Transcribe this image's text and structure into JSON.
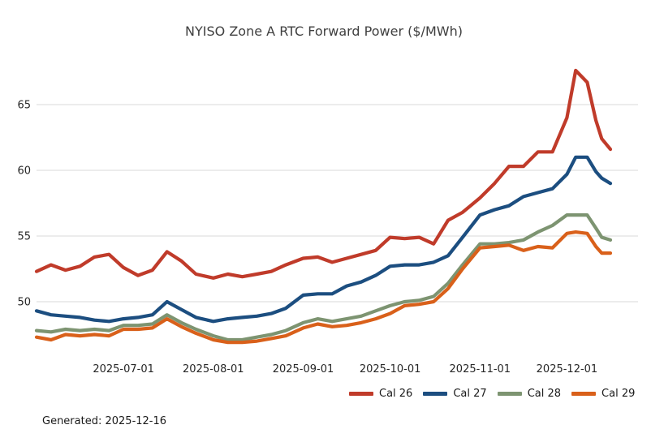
{
  "chart_data": {
    "type": "line",
    "title": "NYISO Zone A RTC Forward Power ($/MWh)",
    "xlabel": "",
    "ylabel": "",
    "grid": "horizontal-only",
    "legend_position": "bottom-right-below-axis",
    "x_range": [
      "2025-06-01",
      "2025-12-16"
    ],
    "x_tick_dates": [
      "2025-07-01",
      "2025-08-01",
      "2025-09-01",
      "2025-10-01",
      "2025-11-01",
      "2025-12-01"
    ],
    "x_tick_labels": [
      "2025-07-01",
      "2025-08-01",
      "2025-09-01",
      "2025-10-01",
      "2025-11-01",
      "2025-12-01"
    ],
    "y_ticks": [
      50,
      55,
      60,
      65
    ],
    "y_tick_labels": [
      "50",
      "55",
      "60",
      "65"
    ],
    "y_visible_range": [
      46.4,
      68.1
    ],
    "dates": [
      "2025-06-01",
      "2025-06-06",
      "2025-06-11",
      "2025-06-16",
      "2025-06-21",
      "2025-06-26",
      "2025-07-01",
      "2025-07-06",
      "2025-07-11",
      "2025-07-16",
      "2025-07-21",
      "2025-07-26",
      "2025-08-01",
      "2025-08-06",
      "2025-08-11",
      "2025-08-16",
      "2025-08-21",
      "2025-08-26",
      "2025-09-01",
      "2025-09-06",
      "2025-09-11",
      "2025-09-16",
      "2025-09-21",
      "2025-09-26",
      "2025-10-01",
      "2025-10-06",
      "2025-10-11",
      "2025-10-16",
      "2025-10-21",
      "2025-10-26",
      "2025-11-01",
      "2025-11-06",
      "2025-11-11",
      "2025-11-16",
      "2025-11-21",
      "2025-11-26",
      "2025-12-01",
      "2025-12-04",
      "2025-12-08",
      "2025-12-11",
      "2025-12-13",
      "2025-12-16"
    ],
    "series": [
      {
        "name": "Cal 26",
        "color": "#c03b2a",
        "values": [
          52.3,
          52.8,
          52.4,
          52.7,
          53.4,
          53.6,
          52.6,
          52.0,
          52.4,
          53.8,
          53.1,
          52.1,
          51.8,
          52.1,
          51.9,
          52.1,
          52.3,
          52.8,
          53.3,
          53.4,
          53.0,
          53.3,
          53.6,
          53.9,
          54.9,
          54.8,
          54.9,
          54.4,
          56.2,
          56.8,
          57.9,
          59.0,
          60.3,
          60.3,
          61.4,
          61.4,
          64.0,
          67.6,
          66.7,
          63.8,
          62.4,
          61.6
        ]
      },
      {
        "name": "Cal 27",
        "color": "#1c4e80",
        "values": [
          49.3,
          49.0,
          48.9,
          48.8,
          48.6,
          48.5,
          48.7,
          48.8,
          49.0,
          50.0,
          49.4,
          48.8,
          48.5,
          48.7,
          48.8,
          48.9,
          49.1,
          49.5,
          50.5,
          50.6,
          50.6,
          51.2,
          51.5,
          52.0,
          52.7,
          52.8,
          52.8,
          53.0,
          53.5,
          54.9,
          56.6,
          57.0,
          57.3,
          58.0,
          58.3,
          58.6,
          59.7,
          61.0,
          61.0,
          59.9,
          59.4,
          59.0
        ]
      },
      {
        "name": "Cal 28",
        "color": "#7d9471",
        "values": [
          47.8,
          47.7,
          47.9,
          47.8,
          47.9,
          47.8,
          48.2,
          48.2,
          48.3,
          49.0,
          48.4,
          47.9,
          47.4,
          47.1,
          47.1,
          47.3,
          47.5,
          47.8,
          48.4,
          48.7,
          48.5,
          48.7,
          48.9,
          49.3,
          49.7,
          50.0,
          50.1,
          50.4,
          51.4,
          52.8,
          54.4,
          54.4,
          54.5,
          54.7,
          55.3,
          55.8,
          56.6,
          56.6,
          56.6,
          55.6,
          54.9,
          54.7
        ]
      },
      {
        "name": "Cal 29",
        "color": "#d9601a",
        "values": [
          47.3,
          47.1,
          47.5,
          47.4,
          47.5,
          47.4,
          47.9,
          47.9,
          48.0,
          48.7,
          48.1,
          47.6,
          47.1,
          46.9,
          46.9,
          47.0,
          47.2,
          47.4,
          48.0,
          48.3,
          48.1,
          48.2,
          48.4,
          48.7,
          49.1,
          49.7,
          49.8,
          50.0,
          51.0,
          52.5,
          54.1,
          54.2,
          54.3,
          53.9,
          54.2,
          54.1,
          55.2,
          55.3,
          55.2,
          54.2,
          53.7,
          53.7
        ]
      }
    ]
  },
  "footer": {
    "generated_label": "Generated: 2025-12-16"
  },
  "colors": {
    "background": "#ffffff",
    "gridline": "#d9d9d9",
    "title_text": "#3f3f3f",
    "tick_text": "#262626"
  }
}
